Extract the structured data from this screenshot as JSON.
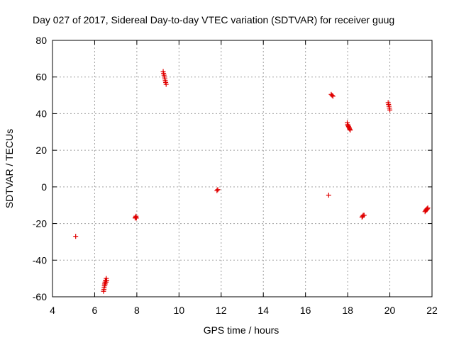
{
  "chart_data": {
    "type": "scatter",
    "title": "Day 027 of 2017, Sidereal Day-to-day VTEC variation (SDTVAR) for receiver guug",
    "xlabel": "GPS time / hours",
    "ylabel": "SDTVAR / TECUs",
    "xlim": [
      4,
      22
    ],
    "ylim": [
      -60,
      80
    ],
    "xticks": [
      4,
      6,
      8,
      10,
      12,
      14,
      16,
      18,
      20,
      22
    ],
    "yticks": [
      -60,
      -40,
      -20,
      0,
      20,
      40,
      60,
      80
    ],
    "grid": true,
    "marker": "+",
    "color": "#e00000",
    "series": [
      {
        "name": "SDTVAR",
        "x": [
          5.1,
          6.42,
          6.44,
          6.45,
          6.46,
          6.47,
          6.48,
          6.49,
          6.5,
          6.51,
          6.52,
          6.53,
          6.54,
          6.55,
          6.56,
          6.57,
          7.92,
          7.94,
          7.96,
          7.98,
          9.25,
          9.27,
          9.29,
          9.31,
          9.33,
          9.35,
          9.37,
          9.39,
          11.8,
          11.84,
          17.1,
          17.22,
          17.26,
          17.3,
          17.98,
          18.0,
          18.02,
          18.04,
          18.06,
          18.08,
          18.1,
          18.12,
          18.68,
          18.71,
          18.74,
          18.78,
          19.92,
          19.94,
          19.96,
          19.98,
          20.0,
          21.67,
          21.7,
          21.72,
          21.74,
          21.76,
          21.78,
          21.8
        ],
        "y": [
          -27,
          -57,
          -56,
          -55,
          -54,
          -53,
          -54,
          -52,
          -53,
          -51,
          -52,
          -51,
          -52,
          -50,
          -51,
          -51,
          -17,
          -16.5,
          -16,
          -17,
          63,
          62,
          61,
          60,
          59,
          58,
          57,
          56,
          -2,
          -1.5,
          -4.5,
          50.5,
          50,
          49.5,
          35,
          34,
          33.5,
          33,
          32.5,
          32,
          31.5,
          31,
          -16.5,
          -16,
          -15.5,
          -15.5,
          46,
          45,
          44,
          43,
          42,
          -13.5,
          -13,
          -12.5,
          -12.5,
          -12,
          -12,
          -11.5
        ]
      }
    ]
  }
}
